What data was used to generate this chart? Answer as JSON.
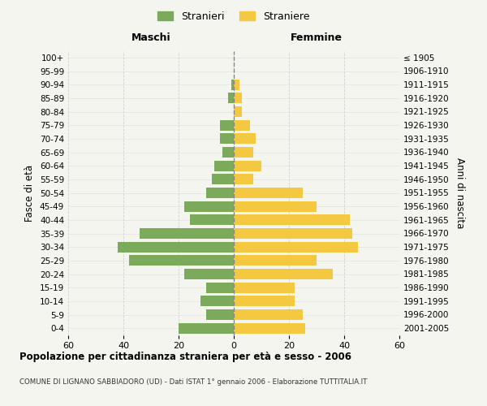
{
  "age_groups": [
    "0-4",
    "5-9",
    "10-14",
    "15-19",
    "20-24",
    "25-29",
    "30-34",
    "35-39",
    "40-44",
    "45-49",
    "50-54",
    "55-59",
    "60-64",
    "65-69",
    "70-74",
    "75-79",
    "80-84",
    "85-89",
    "90-94",
    "95-99",
    "100+"
  ],
  "birth_years": [
    "2001-2005",
    "1996-2000",
    "1991-1995",
    "1986-1990",
    "1981-1985",
    "1976-1980",
    "1971-1975",
    "1966-1970",
    "1961-1965",
    "1956-1960",
    "1951-1955",
    "1946-1950",
    "1941-1945",
    "1936-1940",
    "1931-1935",
    "1926-1930",
    "1921-1925",
    "1916-1920",
    "1911-1915",
    "1906-1910",
    "≤ 1905"
  ],
  "males": [
    20,
    10,
    12,
    10,
    18,
    38,
    42,
    34,
    16,
    18,
    10,
    8,
    7,
    4,
    5,
    5,
    0,
    2,
    1,
    0,
    0
  ],
  "females": [
    26,
    25,
    22,
    22,
    36,
    30,
    45,
    43,
    42,
    30,
    25,
    7,
    10,
    7,
    8,
    6,
    3,
    3,
    2,
    0,
    0
  ],
  "male_color": "#7aaa5a",
  "female_color": "#f5c842",
  "background_color": "#f5f5f0",
  "grid_color": "#cccccc",
  "title": "Popolazione per cittadinanza straniera per età e sesso - 2006",
  "subtitle": "COMUNE DI LIGNANO SABBIADORO (UD) - Dati ISTAT 1° gennaio 2006 - Elaborazione TUTTITALIA.IT",
  "xlabel_left": "Maschi",
  "xlabel_right": "Femmine",
  "ylabel_left": "Fasce di età",
  "ylabel_right": "Anni di nascita",
  "legend_male": "Stranieri",
  "legend_female": "Straniere",
  "xlim": 60
}
